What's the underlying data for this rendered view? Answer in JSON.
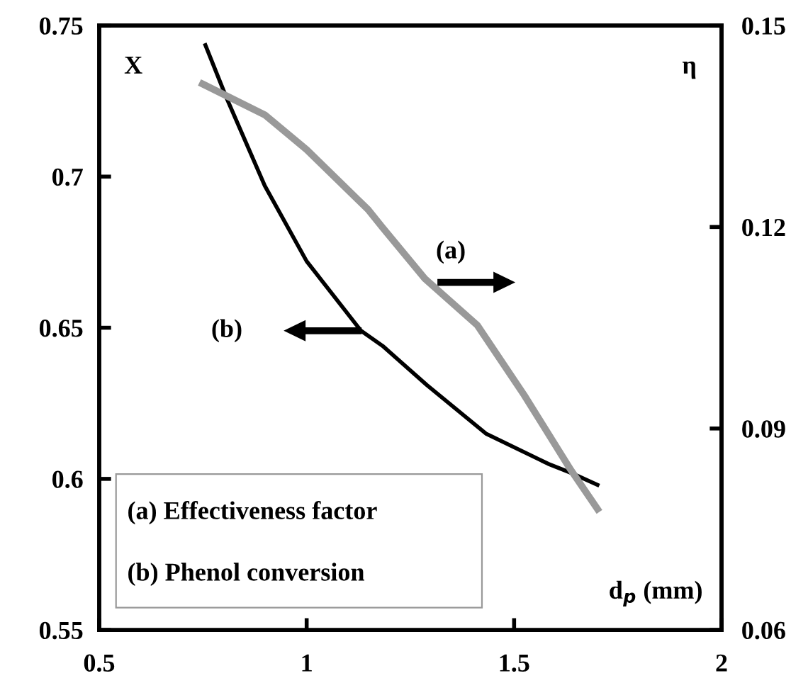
{
  "chart_data": {
    "type": "line",
    "xlabel": "d$_{p}$ (mm)",
    "ylabel": "X",
    "y2label": "η",
    "xlim": [
      0.5,
      2
    ],
    "xticks": [
      0.5,
      1,
      1.5,
      2
    ],
    "ylim": [
      0.55,
      0.75
    ],
    "yticks": [
      0.55,
      0.6,
      0.65,
      0.7,
      0.75
    ],
    "y2lim": [
      0.06,
      0.15
    ],
    "y2ticks": [
      0.06,
      0.09,
      0.12,
      0.15
    ],
    "line_style": "solid",
    "marker": "none",
    "grid": false,
    "legend": false,
    "annotations": [
      "(a)",
      "(b)",
      "(a) Effectiveness factor",
      "(b) Phenol conversion"
    ],
    "series": [
      {
        "color": "#999999",
        "axis": "y2",
        "x": [
          0.749,
          0.899,
          1.0,
          1.148,
          1.183,
          1.285,
          1.411,
          1.524,
          1.637,
          1.701
        ],
        "values": [
          0.1413,
          0.1367,
          0.1315,
          0.1226,
          0.1199,
          0.1123,
          0.1054,
          0.095,
          0.0838,
          0.078
        ]
      },
      {
        "color": "#000000",
        "axis": "y",
        "x": [
          0.756,
          0.807,
          0.899,
          1.0,
          1.131,
          1.183,
          1.29,
          1.432,
          1.582,
          1.637,
          1.701
        ],
        "values": [
          0.7435,
          0.726,
          0.697,
          0.672,
          0.649,
          0.644,
          0.631,
          0.615,
          0.605,
          0.602,
          0.598
        ]
      }
    ]
  }
}
